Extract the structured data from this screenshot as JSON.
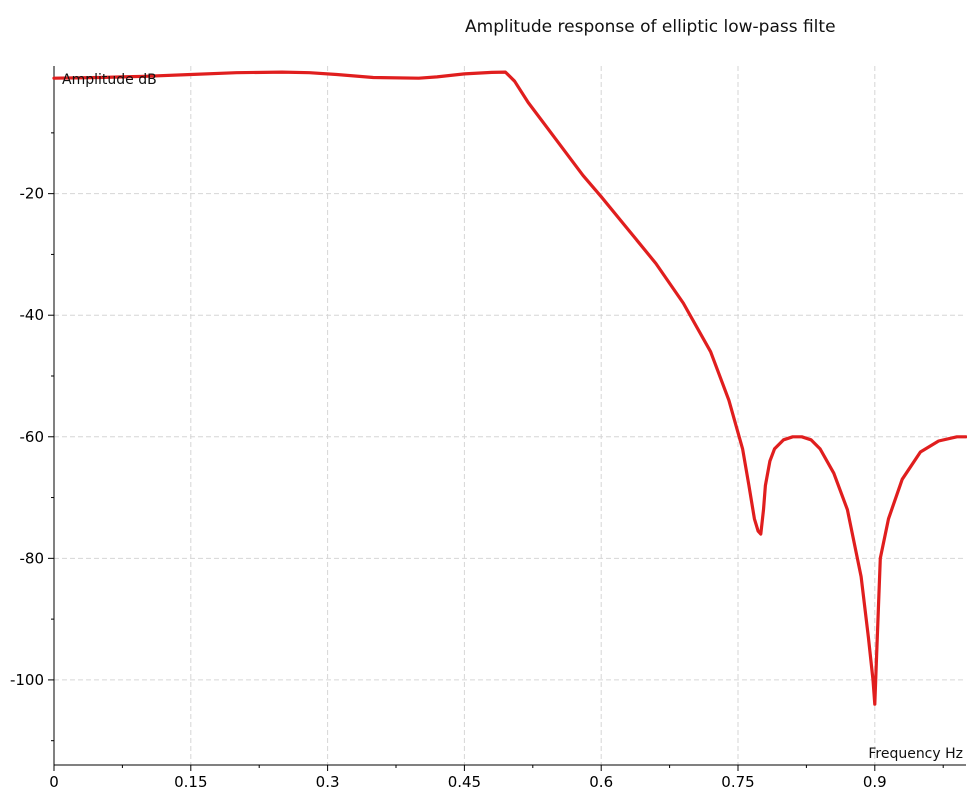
{
  "chart_data": {
    "type": "line",
    "title": "Amplitude response of elliptic low-pass filte",
    "xlabel": "Frequency Hz",
    "ylabel": "Amplitude dB",
    "xlim": [
      0,
      1.0
    ],
    "ylim": [
      -114,
      1
    ],
    "x_ticks": [
      0,
      0.15,
      0.3,
      0.45,
      0.6,
      0.75,
      0.9
    ],
    "x_tick_labels": [
      "0",
      "0.15",
      "0.3",
      "0.45",
      "0.6",
      "0.75",
      "0.9"
    ],
    "y_ticks": [
      -20,
      -40,
      -60,
      -80,
      -100
    ],
    "y_tick_labels": [
      "-20",
      "-40",
      "-60",
      "-80",
      "-100"
    ],
    "grid": true,
    "colors": {
      "line": "#e01e1e",
      "grid": "#d6d6d6",
      "axis": "#000000"
    },
    "series": [
      {
        "x": [
          0,
          0.05,
          0.1,
          0.15,
          0.2,
          0.25,
          0.28,
          0.31,
          0.35,
          0.4,
          0.42,
          0.45,
          0.48,
          0.495,
          0.505,
          0.52,
          0.55,
          0.58,
          0.6,
          0.63,
          0.66,
          0.69,
          0.72,
          0.74,
          0.755,
          0.762,
          0.768,
          0.772,
          0.775,
          0.778,
          0.78,
          0.785,
          0.79,
          0.8,
          0.81,
          0.82,
          0.83,
          0.84,
          0.855,
          0.87,
          0.885,
          0.893,
          0.898,
          0.9,
          0.902,
          0.906,
          0.915,
          0.93,
          0.95,
          0.97,
          0.99,
          1.0
        ],
        "y": [
          -1.0,
          -0.9,
          -0.7,
          -0.4,
          -0.1,
          0.0,
          -0.1,
          -0.4,
          -0.9,
          -1.0,
          -0.8,
          -0.3,
          -0.05,
          0.0,
          -1.5,
          -5.0,
          -11.0,
          -17.0,
          -20.5,
          -26.0,
          -31.5,
          -38.0,
          -46.0,
          -54.0,
          -62.0,
          -68.0,
          -73.5,
          -75.5,
          -76.0,
          -72.0,
          -68.0,
          -64.0,
          -62.0,
          -60.5,
          -60.0,
          -60.0,
          -60.5,
          -62.0,
          -66.0,
          -72.0,
          -83.0,
          -93.0,
          -100.0,
          -104.0,
          -96.0,
          -80.0,
          -73.5,
          -67.0,
          -62.5,
          -60.7,
          -60.0,
          -60.0
        ]
      }
    ]
  }
}
